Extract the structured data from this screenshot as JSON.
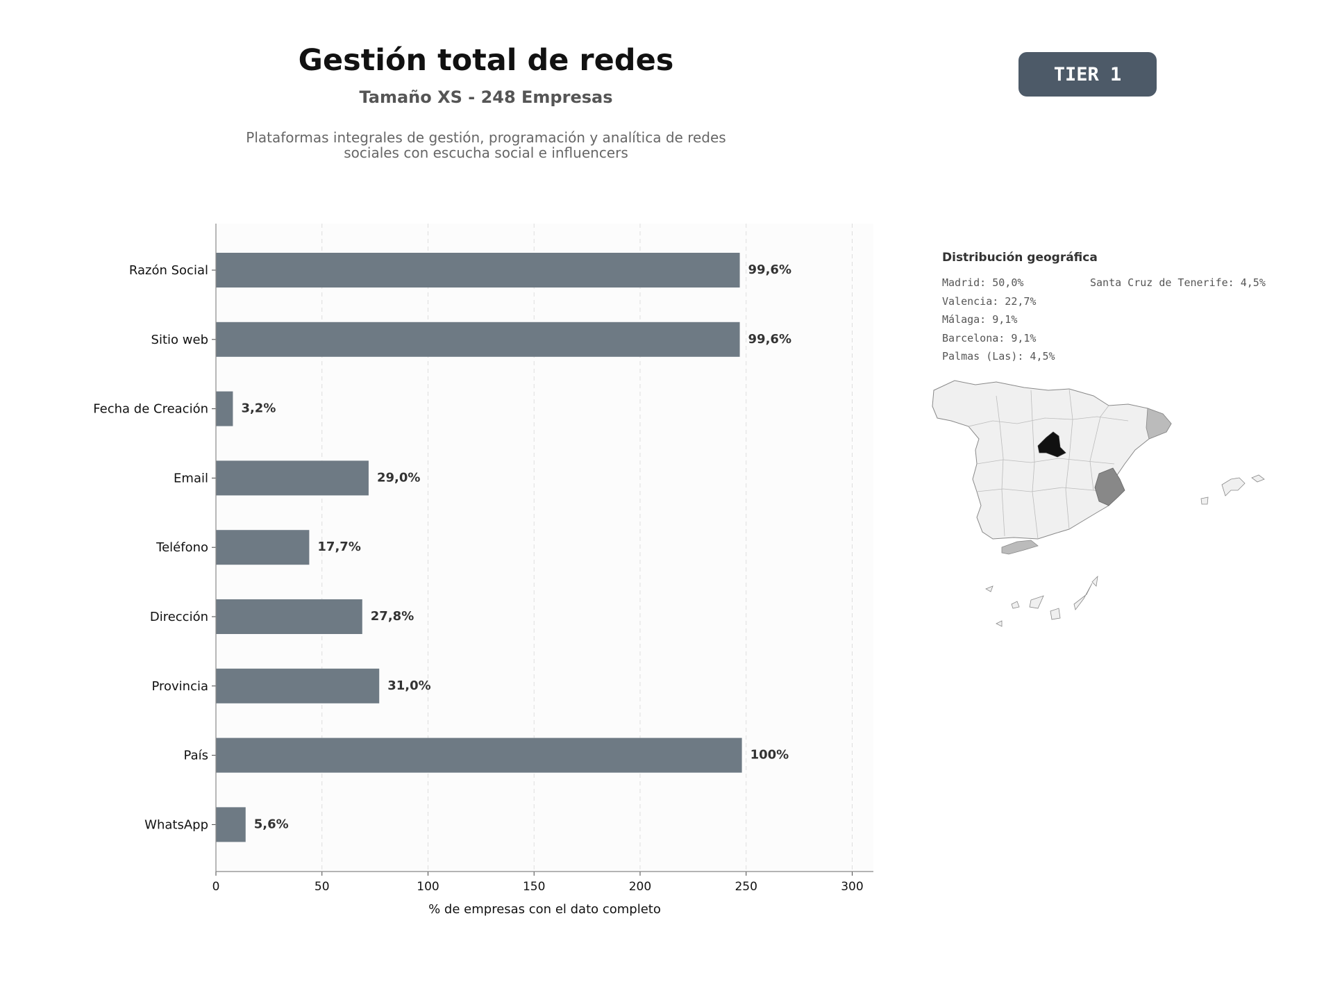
{
  "header": {
    "title": "Gestión total de redes",
    "subtitle": "Tamaño XS - 248 Empresas",
    "description_line1": "Plataformas integrales de gestión, programación y analítica de redes",
    "description_line2": "sociales con escucha social e influencers",
    "badge": "TIER 1"
  },
  "chart_data": {
    "type": "bar",
    "orientation": "horizontal",
    "categories": [
      "Razón Social",
      "Sitio web",
      "Fecha de Creación",
      "Email",
      "Teléfono",
      "Dirección",
      "Provincia",
      "País",
      "WhatsApp"
    ],
    "values": [
      247,
      247,
      8,
      72,
      44,
      69,
      77,
      248,
      14
    ],
    "value_labels": [
      "99,6%",
      "99,6%",
      "3,2%",
      "29,0%",
      "17,7%",
      "27,8%",
      "31,0%",
      "100%",
      "5,6%"
    ],
    "xlabel": "% de empresas con el dato completo",
    "xlim": [
      0,
      310
    ],
    "xticks": [
      0,
      50,
      100,
      150,
      200,
      250,
      300
    ],
    "grid": "vertical dashed",
    "bar_color": "#6e7a84"
  },
  "geo": {
    "title": "Distribución geográfica",
    "left_items": [
      "Madrid: 50,0%",
      "Valencia: 22,7%",
      "Málaga: 9,1%",
      "Barcelona: 9,1%",
      "Palmas (Las): 4,5%"
    ],
    "right_items": [
      "Santa Cruz de Tenerife: 4,5%"
    ],
    "highlight_colors": {
      "madrid": "#111111",
      "valencia": "#888888",
      "malaga": "#bbbbbb",
      "barcelona": "#bbbbbb",
      "base": "#f0f0f0"
    }
  }
}
